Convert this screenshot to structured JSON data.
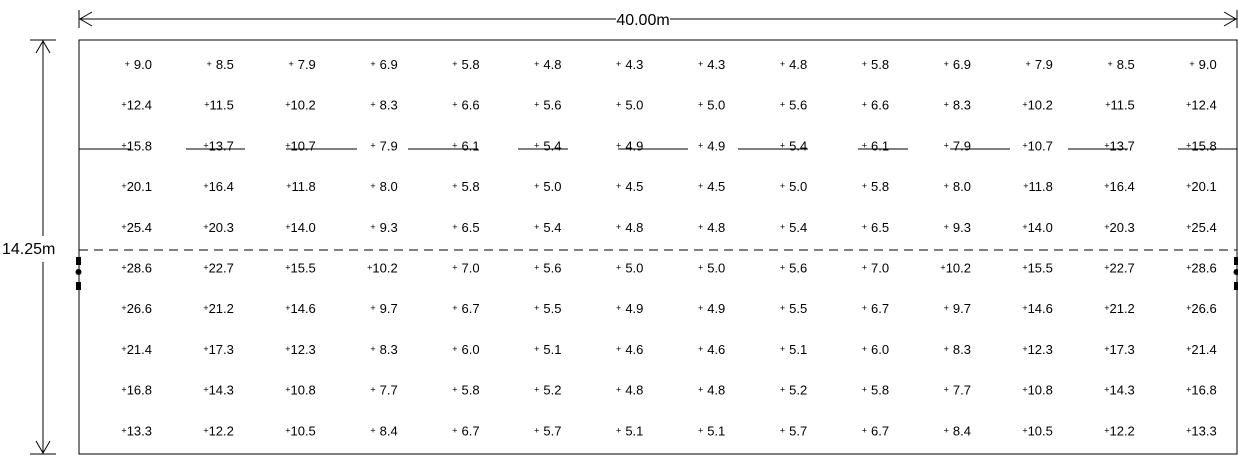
{
  "dimensions": {
    "width_label": "40.00m",
    "height_label": "14.25m"
  },
  "grid": {
    "marker": "+",
    "rows": [
      [
        "9.0",
        "8.5",
        "7.9",
        "6.9",
        "5.8",
        "4.8",
        "4.3",
        "4.3",
        "4.8",
        "5.8",
        "6.9",
        "7.9",
        "8.5",
        "9.0"
      ],
      [
        "12.4",
        "11.5",
        "10.2",
        "8.3",
        "6.6",
        "5.6",
        "5.0",
        "5.0",
        "5.6",
        "6.6",
        "8.3",
        "10.2",
        "11.5",
        "12.4"
      ],
      [
        "15.8",
        "13.7",
        "10.7",
        "7.9",
        "6.1",
        "5.4",
        "4.9",
        "4.9",
        "5.4",
        "6.1",
        "7.9",
        "10.7",
        "13.7",
        "15.8"
      ],
      [
        "20.1",
        "16.4",
        "11.8",
        "8.0",
        "5.8",
        "5.0",
        "4.5",
        "4.5",
        "5.0",
        "5.8",
        "8.0",
        "11.8",
        "16.4",
        "20.1"
      ],
      [
        "25.4",
        "20.3",
        "14.0",
        "9.3",
        "6.5",
        "5.4",
        "4.8",
        "4.8",
        "5.4",
        "6.5",
        "9.3",
        "14.0",
        "20.3",
        "25.4"
      ],
      [
        "28.6",
        "22.7",
        "15.5",
        "10.2",
        "7.0",
        "5.6",
        "5.0",
        "5.0",
        "5.6",
        "7.0",
        "10.2",
        "15.5",
        "22.7",
        "28.6"
      ],
      [
        "26.6",
        "21.2",
        "14.6",
        "9.7",
        "6.7",
        "5.5",
        "4.9",
        "4.9",
        "5.5",
        "6.7",
        "9.7",
        "14.6",
        "21.2",
        "26.6"
      ],
      [
        "21.4",
        "17.3",
        "12.3",
        "8.3",
        "6.0",
        "5.1",
        "4.6",
        "4.6",
        "5.1",
        "6.0",
        "8.3",
        "12.3",
        "17.3",
        "21.4"
      ],
      [
        "16.8",
        "14.3",
        "10.8",
        "7.7",
        "5.8",
        "5.2",
        "4.8",
        "4.8",
        "5.2",
        "5.8",
        "7.7",
        "10.8",
        "14.3",
        "16.8"
      ],
      [
        "13.3",
        "12.2",
        "10.5",
        "8.4",
        "6.7",
        "5.7",
        "5.1",
        "5.1",
        "5.7",
        "6.7",
        "8.4",
        "10.5",
        "12.2",
        "13.3"
      ]
    ]
  }
}
